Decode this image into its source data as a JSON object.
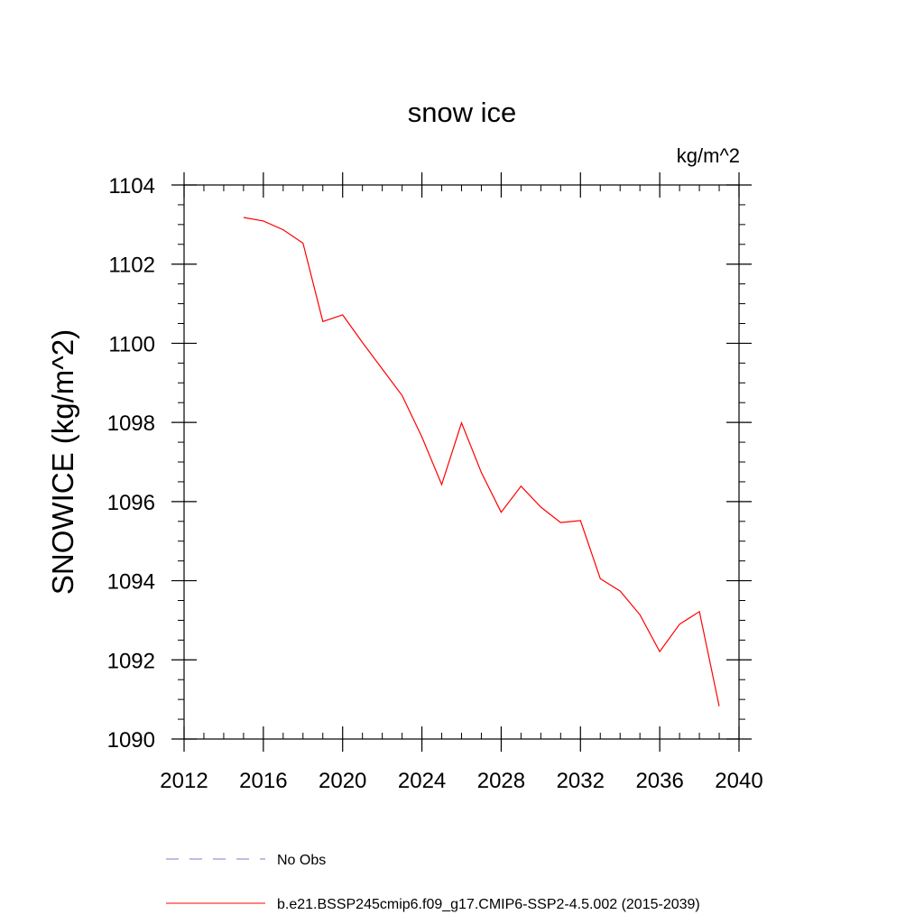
{
  "chart_data": {
    "type": "line",
    "title": "snow ice",
    "units": "kg/m^2",
    "xlabel": "",
    "ylabel": "SNOWICE  (kg/m^2)",
    "xlim": [
      2012,
      2040
    ],
    "ylim": [
      1090,
      1104
    ],
    "x_ticks": [
      2012,
      2016,
      2020,
      2024,
      2028,
      2032,
      2036,
      2040
    ],
    "y_ticks": [
      1090,
      1092,
      1094,
      1096,
      1098,
      1100,
      1102,
      1104
    ],
    "grid": false,
    "legend_position": "bottom",
    "series": [
      {
        "name": "No Obs",
        "color": "#7b7bc6",
        "style": "dashed",
        "x": [],
        "values": []
      },
      {
        "name": "b.e21.BSSP245cmip6.f09_g17.CMIP6-SSP2-4.5.002 (2015-2039)",
        "color": "#ff0000",
        "style": "solid",
        "x": [
          2015,
          2016,
          2017,
          2018,
          2019,
          2020,
          2021,
          2022,
          2023,
          2024,
          2025,
          2026,
          2027,
          2028,
          2029,
          2030,
          2031,
          2032,
          2033,
          2034,
          2035,
          2036,
          2037,
          2038,
          2039
        ],
        "values": [
          1103.18,
          1103.09,
          1102.87,
          1102.53,
          1100.55,
          1100.72,
          1100.02,
          1099.35,
          1098.68,
          1097.63,
          1096.43,
          1097.99,
          1096.73,
          1095.73,
          1096.39,
          1095.86,
          1095.47,
          1095.52,
          1094.05,
          1093.74,
          1093.14,
          1092.21,
          1092.9,
          1093.22,
          1090.83
        ]
      }
    ]
  }
}
